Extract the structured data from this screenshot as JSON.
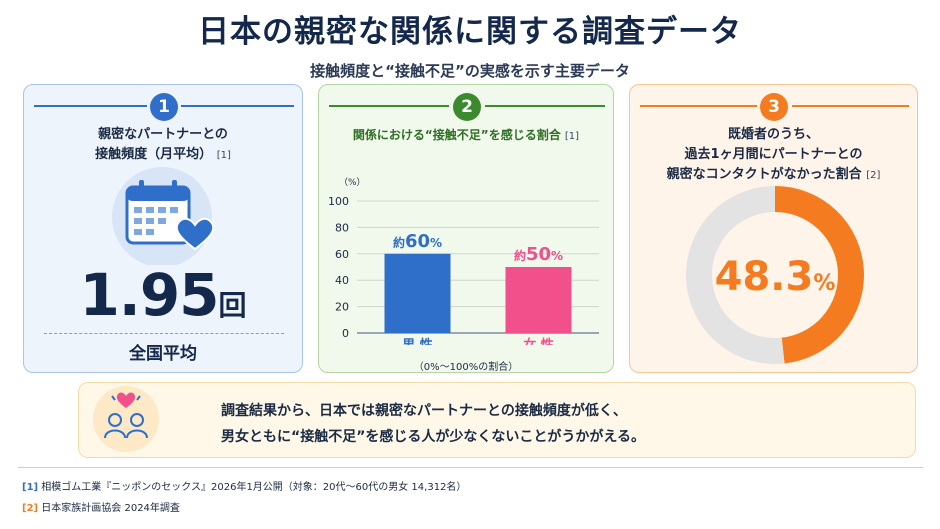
{
  "title": "日本の親密な関係に関する調査データ",
  "subtitle": "接触頻度と“接触不足”の実感を示す主要データ",
  "colors": {
    "blue": "#2f6fc9",
    "green": "#3c8a2e",
    "orange": "#f47b20",
    "pink": "#f2508a",
    "gray": "#e3e3e3",
    "navy": "#14284b"
  },
  "card1": {
    "number": "1",
    "title_line1": "親密なパートナーとの",
    "title_line2": "接触頻度（月平均）",
    "cite": "[1]",
    "icon": "calendar-heart-icon",
    "value": "1.95",
    "unit": "回",
    "caption": "全国平均"
  },
  "card2": {
    "number": "2",
    "title": "関係における“接触不足”を感じる割合",
    "cite": "[1]",
    "note": "（0%～100%の割合）"
  },
  "card3": {
    "number": "3",
    "title_line1": "既婚者のうち、",
    "title_line2": "過去1ヶ月間にパートナーとの",
    "title_line3": "親密なコンタクトがなかった割合",
    "cite": "[2]",
    "value": "48.3",
    "unit": "%"
  },
  "summary": {
    "icon": "couple-heart-icon",
    "line1": "調査結果から、日本では親密なパートナーとの接触頻度が低く、",
    "line2": "男女ともに“接触不足”を感じる人が少なくないことがうかがえる。"
  },
  "footnotes": [
    {
      "tag": "[1]",
      "text": "相模ゴム工業『ニッポンのセックス』2026年1月公開（対象：20代～60代の男女 14,312名）"
    },
    {
      "tag": "[2]",
      "text": "日本家族計画協会 2024年調査"
    }
  ],
  "chart_data": [
    {
      "type": "bar",
      "categories": [
        "男 性",
        "女 性"
      ],
      "values": [
        60,
        50
      ],
      "data_labels": [
        {
          "prefix": "約",
          "value": "60",
          "unit": "%"
        },
        {
          "prefix": "約",
          "value": "50",
          "unit": "%"
        }
      ],
      "colors": [
        "#2f6fc9",
        "#f2508a"
      ],
      "ylabel": "（%）",
      "ylim": [
        0,
        100
      ],
      "yticks": [
        0,
        20,
        40,
        60,
        80,
        100
      ],
      "grid": true
    },
    {
      "type": "pie",
      "donut": true,
      "labels": [
        "",
        ""
      ],
      "values": [
        48.3,
        51.7
      ],
      "colors": [
        "#f47b20",
        "#e3e3e3"
      ],
      "center_label": "48.3%"
    }
  ]
}
